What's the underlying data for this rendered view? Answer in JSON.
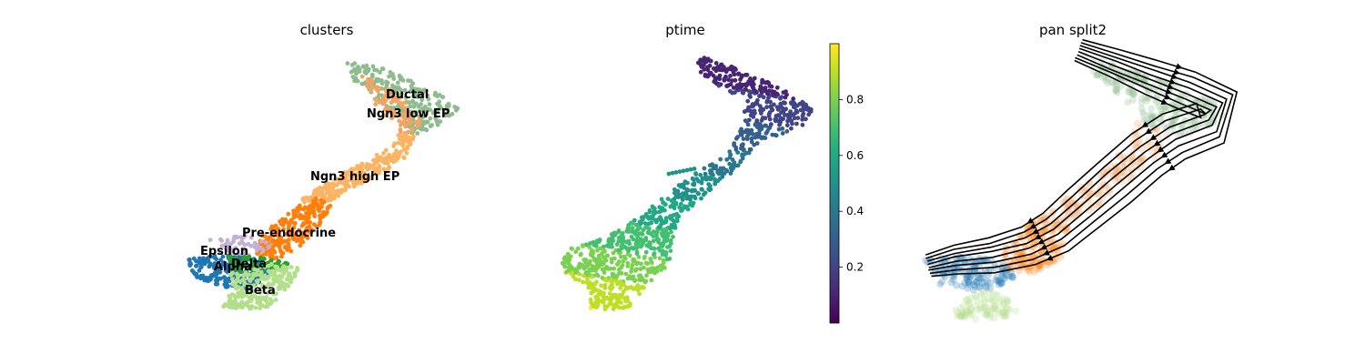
{
  "chart_data": [
    {
      "type": "scatter",
      "title": "clusters",
      "labels": [
        "Ductal",
        "Ngn3 low EP",
        "Ngn3 high EP",
        "Pre-endocrine",
        "Epsilon",
        "Alpha",
        "Delta",
        "Beta"
      ],
      "colors": {
        "Ductal": "#8fbc8f",
        "Ngn3 low EP": "#f4a460",
        "Ngn3 high EP": "#fdb462",
        "Pre-endocrine": "#ff7f0e",
        "Epsilon": "#c5b0d5",
        "Alpha": "#1f77b4",
        "Delta": "#2ca02c",
        "Beta": "#b2df8a"
      }
    },
    {
      "type": "scatter",
      "title": "ptime",
      "colorbar": {
        "ticks": [
          "0.2",
          "0.4",
          "0.6",
          "0.8"
        ],
        "range": [
          0,
          1
        ],
        "colormap": "viridis"
      }
    },
    {
      "type": "scatter",
      "title": "pan split2",
      "overlay": "streamlines"
    }
  ]
}
